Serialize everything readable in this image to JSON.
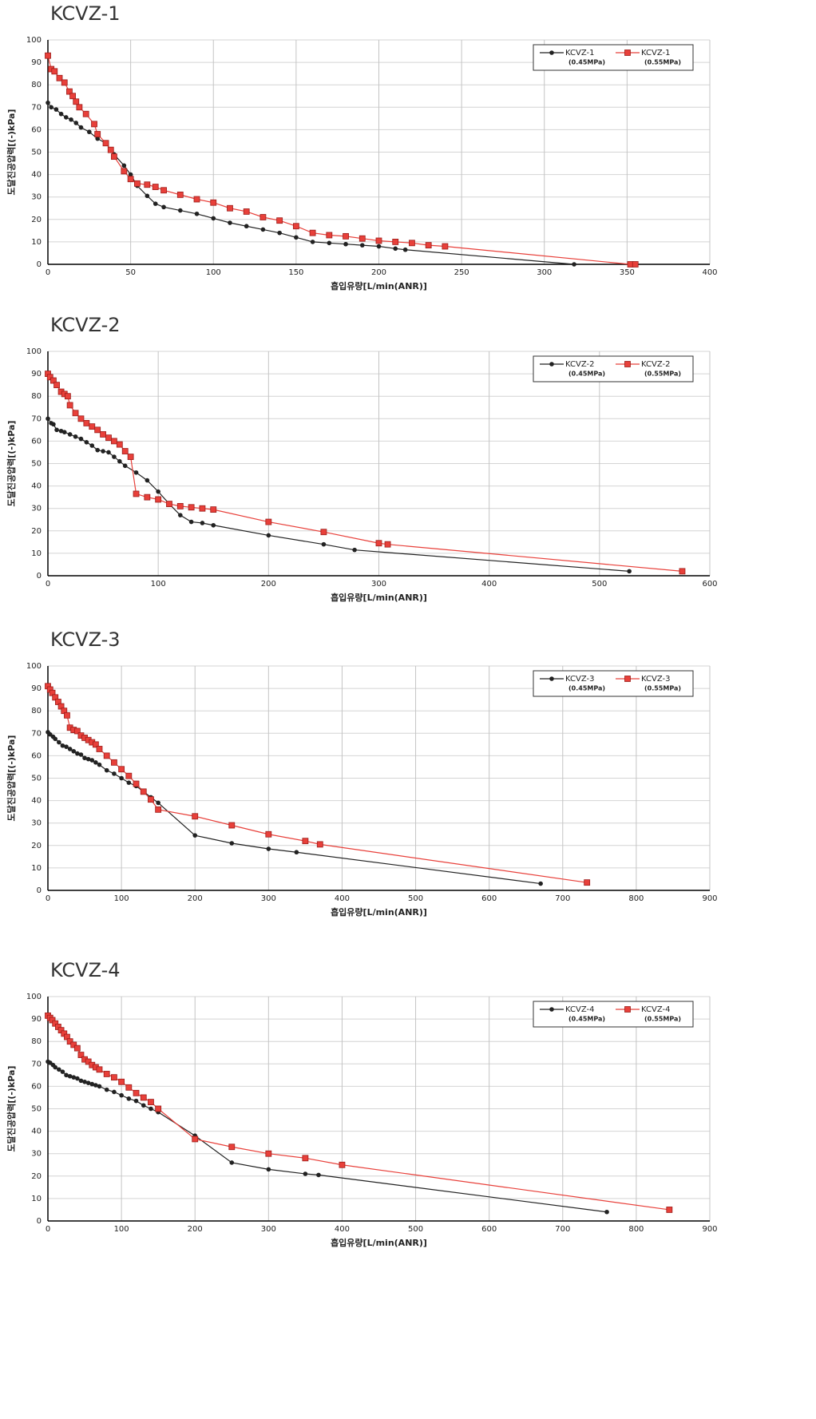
{
  "chart_data": [
    {
      "type": "line",
      "title": "KCVZ-1",
      "x_label": "흡입유량[L/min(ANR)]",
      "y_label": "도달진공압력[(-)kPa]",
      "xlim": [
        0,
        400
      ],
      "ylim": [
        0,
        100
      ],
      "xticks": [
        0,
        50,
        100,
        150,
        200,
        250,
        300,
        350,
        400
      ],
      "yticks": [
        0,
        10,
        20,
        30,
        40,
        50,
        60,
        70,
        80,
        90,
        100
      ],
      "grid": true,
      "legend": "top-right",
      "series": [
        {
          "name": "KCVZ-1",
          "label": "(0.45MPa)",
          "color": "#222222",
          "marker": "circle",
          "x": [
            0,
            2,
            5,
            8,
            11,
            14,
            17,
            20,
            25,
            30,
            35,
            40,
            46,
            50,
            54,
            60,
            65,
            70,
            80,
            90,
            100,
            110,
            120,
            130,
            140,
            150,
            160,
            170,
            180,
            190,
            200,
            210,
            216,
            318
          ],
          "values": [
            72,
            70,
            69,
            67,
            65.5,
            64.5,
            63,
            61,
            59,
            56,
            54,
            49,
            44,
            40,
            35,
            30.5,
            27,
            25.5,
            24,
            22.5,
            20.5,
            18.5,
            17,
            15.5,
            14,
            12,
            10,
            9.5,
            9,
            8.5,
            8,
            7,
            6.5,
            0
          ]
        },
        {
          "name": "KCVZ-1",
          "label": "(0.55MPa)",
          "color": "#e8403a",
          "marker": "square",
          "x": [
            0,
            2,
            4,
            7,
            10,
            13,
            15,
            17,
            19,
            23,
            28,
            30,
            35,
            38,
            40,
            46,
            50,
            54,
            60,
            65,
            70,
            80,
            90,
            100,
            110,
            120,
            130,
            140,
            150,
            160,
            170,
            180,
            190,
            200,
            210,
            220,
            230,
            240,
            352,
            355
          ],
          "values": [
            93,
            87,
            86,
            83,
            81,
            77,
            75,
            72.5,
            70,
            67,
            62.5,
            58,
            54,
            51,
            48,
            41.5,
            38,
            36,
            35.5,
            34.5,
            33,
            31,
            29,
            27.5,
            25,
            23.5,
            21,
            19.5,
            17,
            14,
            13,
            12.5,
            11.5,
            10.5,
            10,
            9.5,
            8.5,
            8,
            0,
            0
          ]
        }
      ]
    },
    {
      "type": "line",
      "title": "KCVZ-2",
      "x_label": "흡입유량[L/min(ANR)]",
      "y_label": "도달진공압력[(-)kPa]",
      "xlim": [
        0,
        600
      ],
      "ylim": [
        0,
        100
      ],
      "xticks": [
        0,
        100,
        200,
        300,
        400,
        500,
        600
      ],
      "yticks": [
        0,
        10,
        20,
        30,
        40,
        50,
        60,
        70,
        80,
        90,
        100
      ],
      "grid": true,
      "legend": "top-right",
      "series": [
        {
          "name": "KCVZ-2",
          "label": "(0.45MPa)",
          "color": "#222222",
          "marker": "circle",
          "x": [
            0,
            3,
            5,
            8,
            12,
            15,
            20,
            25,
            30,
            35,
            40,
            45,
            50,
            55,
            60,
            65,
            70,
            80,
            90,
            100,
            110,
            120,
            130,
            140,
            150,
            200,
            250,
            278,
            527
          ],
          "values": [
            70,
            68,
            67.5,
            65,
            64.5,
            64,
            63,
            62,
            61,
            59.5,
            58,
            56,
            55.5,
            55,
            53,
            51,
            49,
            46,
            42.5,
            37.5,
            32,
            27,
            24,
            23.5,
            22.5,
            18,
            14,
            11.5,
            2
          ]
        },
        {
          "name": "KCVZ-2",
          "label": "(0.55MPa)",
          "color": "#e8403a",
          "marker": "square",
          "x": [
            0,
            2,
            5,
            8,
            12,
            15,
            18,
            20,
            25,
            30,
            35,
            40,
            45,
            50,
            55,
            60,
            65,
            70,
            75,
            80,
            90,
            100,
            110,
            120,
            130,
            140,
            150,
            200,
            250,
            300,
            308,
            575
          ],
          "values": [
            90,
            88.5,
            87,
            85,
            82,
            81,
            80,
            76,
            72.5,
            70,
            68,
            66.5,
            65,
            63,
            61.5,
            60,
            58.5,
            55.5,
            53,
            36.5,
            35,
            34,
            32,
            31,
            30.5,
            30,
            29.5,
            24,
            19.5,
            14.5,
            14,
            2
          ]
        }
      ]
    },
    {
      "type": "line",
      "title": "KCVZ-3",
      "x_label": "흡입유량[L/min(ANR)]",
      "y_label": "도달진공압력[(-)kPa]",
      "xlim": [
        0,
        900
      ],
      "ylim": [
        0,
        100
      ],
      "xticks": [
        0,
        100,
        200,
        300,
        400,
        500,
        600,
        700,
        800,
        900
      ],
      "yticks": [
        0,
        10,
        20,
        30,
        40,
        50,
        60,
        70,
        80,
        90,
        100
      ],
      "grid": true,
      "legend": "top-right",
      "series": [
        {
          "name": "KCVZ-3",
          "label": "(0.45MPa)",
          "color": "#222222",
          "marker": "circle",
          "x": [
            0,
            3,
            7,
            10,
            15,
            20,
            25,
            30,
            35,
            40,
            45,
            50,
            55,
            60,
            65,
            70,
            80,
            90,
            100,
            110,
            120,
            130,
            140,
            150,
            200,
            250,
            300,
            338,
            670
          ],
          "values": [
            70.5,
            69.5,
            68.5,
            67.5,
            66,
            64.5,
            64,
            63,
            62,
            61,
            60.5,
            59,
            58.5,
            58,
            57,
            56,
            53.5,
            52,
            50,
            48,
            46.5,
            44,
            41.5,
            39,
            24.5,
            21,
            18.5,
            17,
            3
          ]
        },
        {
          "name": "KCVZ-3",
          "label": "(0.55MPa)",
          "color": "#e8403a",
          "marker": "square",
          "x": [
            0,
            3,
            6,
            10,
            14,
            18,
            22,
            26,
            30,
            35,
            40,
            45,
            50,
            55,
            60,
            65,
            70,
            80,
            90,
            100,
            110,
            120,
            130,
            140,
            150,
            200,
            250,
            300,
            350,
            370,
            733
          ],
          "values": [
            91,
            89.5,
            88,
            86,
            84,
            82,
            80,
            78,
            72.5,
            71.5,
            71,
            69,
            68,
            67,
            66,
            65,
            63,
            60,
            57,
            54,
            51,
            47.5,
            44,
            40.5,
            36,
            33,
            29,
            25,
            22,
            20.5,
            3.5
          ]
        }
      ]
    },
    {
      "type": "line",
      "title": "KCVZ-4",
      "x_label": "흡입유량[L/min(ANR)]",
      "y_label": "도달진공압력[(-)kPa]",
      "xlim": [
        0,
        900
      ],
      "ylim": [
        0,
        100
      ],
      "xticks": [
        0,
        100,
        200,
        300,
        400,
        500,
        600,
        700,
        800,
        900
      ],
      "yticks": [
        0,
        10,
        20,
        30,
        40,
        50,
        60,
        70,
        80,
        90,
        100
      ],
      "grid": true,
      "legend": "top-right",
      "series": [
        {
          "name": "KCVZ-4",
          "label": "(0.45MPa)",
          "color": "#222222",
          "marker": "circle",
          "x": [
            0,
            3,
            7,
            10,
            15,
            20,
            25,
            30,
            35,
            40,
            45,
            50,
            55,
            60,
            65,
            70,
            80,
            90,
            100,
            110,
            120,
            130,
            140,
            150,
            200,
            250,
            300,
            350,
            368,
            760
          ],
          "values": [
            71,
            70.5,
            69.5,
            68.5,
            67.5,
            66.5,
            65,
            64.5,
            64,
            63.5,
            62.5,
            62,
            61.5,
            61,
            60.5,
            60,
            58.5,
            57.5,
            56,
            54.5,
            53.5,
            51.5,
            50,
            48.5,
            38,
            26,
            23,
            21,
            20.5,
            4
          ]
        },
        {
          "name": "KCVZ-4",
          "label": "(0.55MPa)",
          "color": "#e8403a",
          "marker": "square",
          "x": [
            0,
            3,
            6,
            10,
            14,
            18,
            22,
            26,
            30,
            35,
            40,
            45,
            50,
            55,
            60,
            65,
            70,
            80,
            90,
            100,
            110,
            120,
            130,
            140,
            150,
            200,
            250,
            300,
            350,
            400,
            845
          ],
          "values": [
            91.5,
            90.5,
            89.5,
            88,
            86.5,
            85,
            83.5,
            82,
            80,
            78.5,
            77,
            74,
            72,
            71,
            69.5,
            68.5,
            67.5,
            65.5,
            64,
            62,
            59.5,
            57,
            55,
            53,
            50,
            36.5,
            33,
            30,
            28,
            25,
            5
          ]
        }
      ]
    }
  ]
}
